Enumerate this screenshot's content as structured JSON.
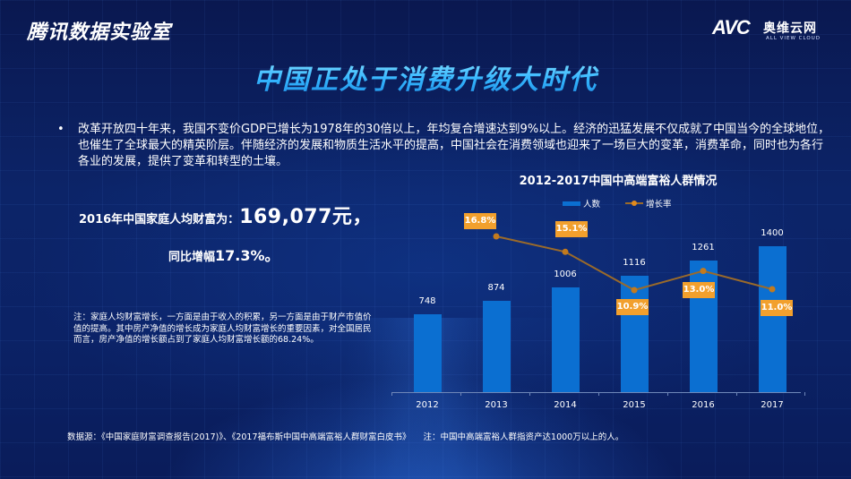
{
  "header": {
    "brand": "腾讯数据实验室",
    "logo": {
      "mark": "AVC",
      "name_cn": "奥维云网",
      "name_en": "ALL VIEW CLOUD"
    }
  },
  "page_title": "中国正处于消费升级大时代",
  "intro": {
    "bullet": "•",
    "text": "改革开放四十年来，我国不变价GDP已增长为1978年的30倍以上，年均复合增速达到9%以上。经济的迅猛发展不仅成就了中国当今的全球地位，也催生了全球最大的精英阶层。伴随经济的发展和物质生活水平的提高，中国社会在消费领域也迎来了一场巨大的变革，消费革命，同时也为各行各业的发展，提供了变革和转型的土壤。"
  },
  "highlight": {
    "wealth_label": "2016年中国家庭人均财富为：",
    "wealth_value": "169,077元，",
    "growth_label": "同比增幅",
    "growth_value": "17.3%。"
  },
  "note": "注：家庭人均财富增长，一方面是由于收入的积累，另一方面是由于财产市值价值的提高。其中房产净值的增长成为家庭人均财富增长的重要因素，对全国居民而言，房产净值的增长额占到了家庭人均财富增长额的68.24%。",
  "chart_data": {
    "type": "bar",
    "title": "2012-2017中国中高端富裕人群情况",
    "categories": [
      "2012",
      "2013",
      "2014",
      "2015",
      "2016",
      "2017"
    ],
    "series": [
      {
        "name": "人数",
        "type": "bar",
        "color": "#0b6fd1",
        "values": [
          748,
          874,
          1006,
          1116,
          1261,
          1400
        ]
      },
      {
        "name": "增长率",
        "type": "line",
        "color": "#e08a1e",
        "values": [
          null,
          16.8,
          15.1,
          10.9,
          13.0,
          11.0
        ],
        "labels": [
          "",
          "16.8%",
          "15.1%",
          "10.9%",
          "13.0%",
          "11.0%"
        ]
      }
    ],
    "legend": [
      "人数",
      "增长率"
    ],
    "legend_position": "top",
    "xlabel": "",
    "ylabel": "",
    "grid": false
  },
  "footer": {
    "source": "数据源：《中国家庭财富调查报告(2017)》、《2017福布斯中国中高端富裕人群财富白皮书》",
    "note": "注：中国中高端富裕人群指资产达1000万以上的人。"
  },
  "colors": {
    "background": "#0b2266",
    "title_accent": "#35b6ff",
    "bar": "#0b6fd1",
    "line": "#9a6a2a",
    "label_box": "#f2a02d"
  }
}
